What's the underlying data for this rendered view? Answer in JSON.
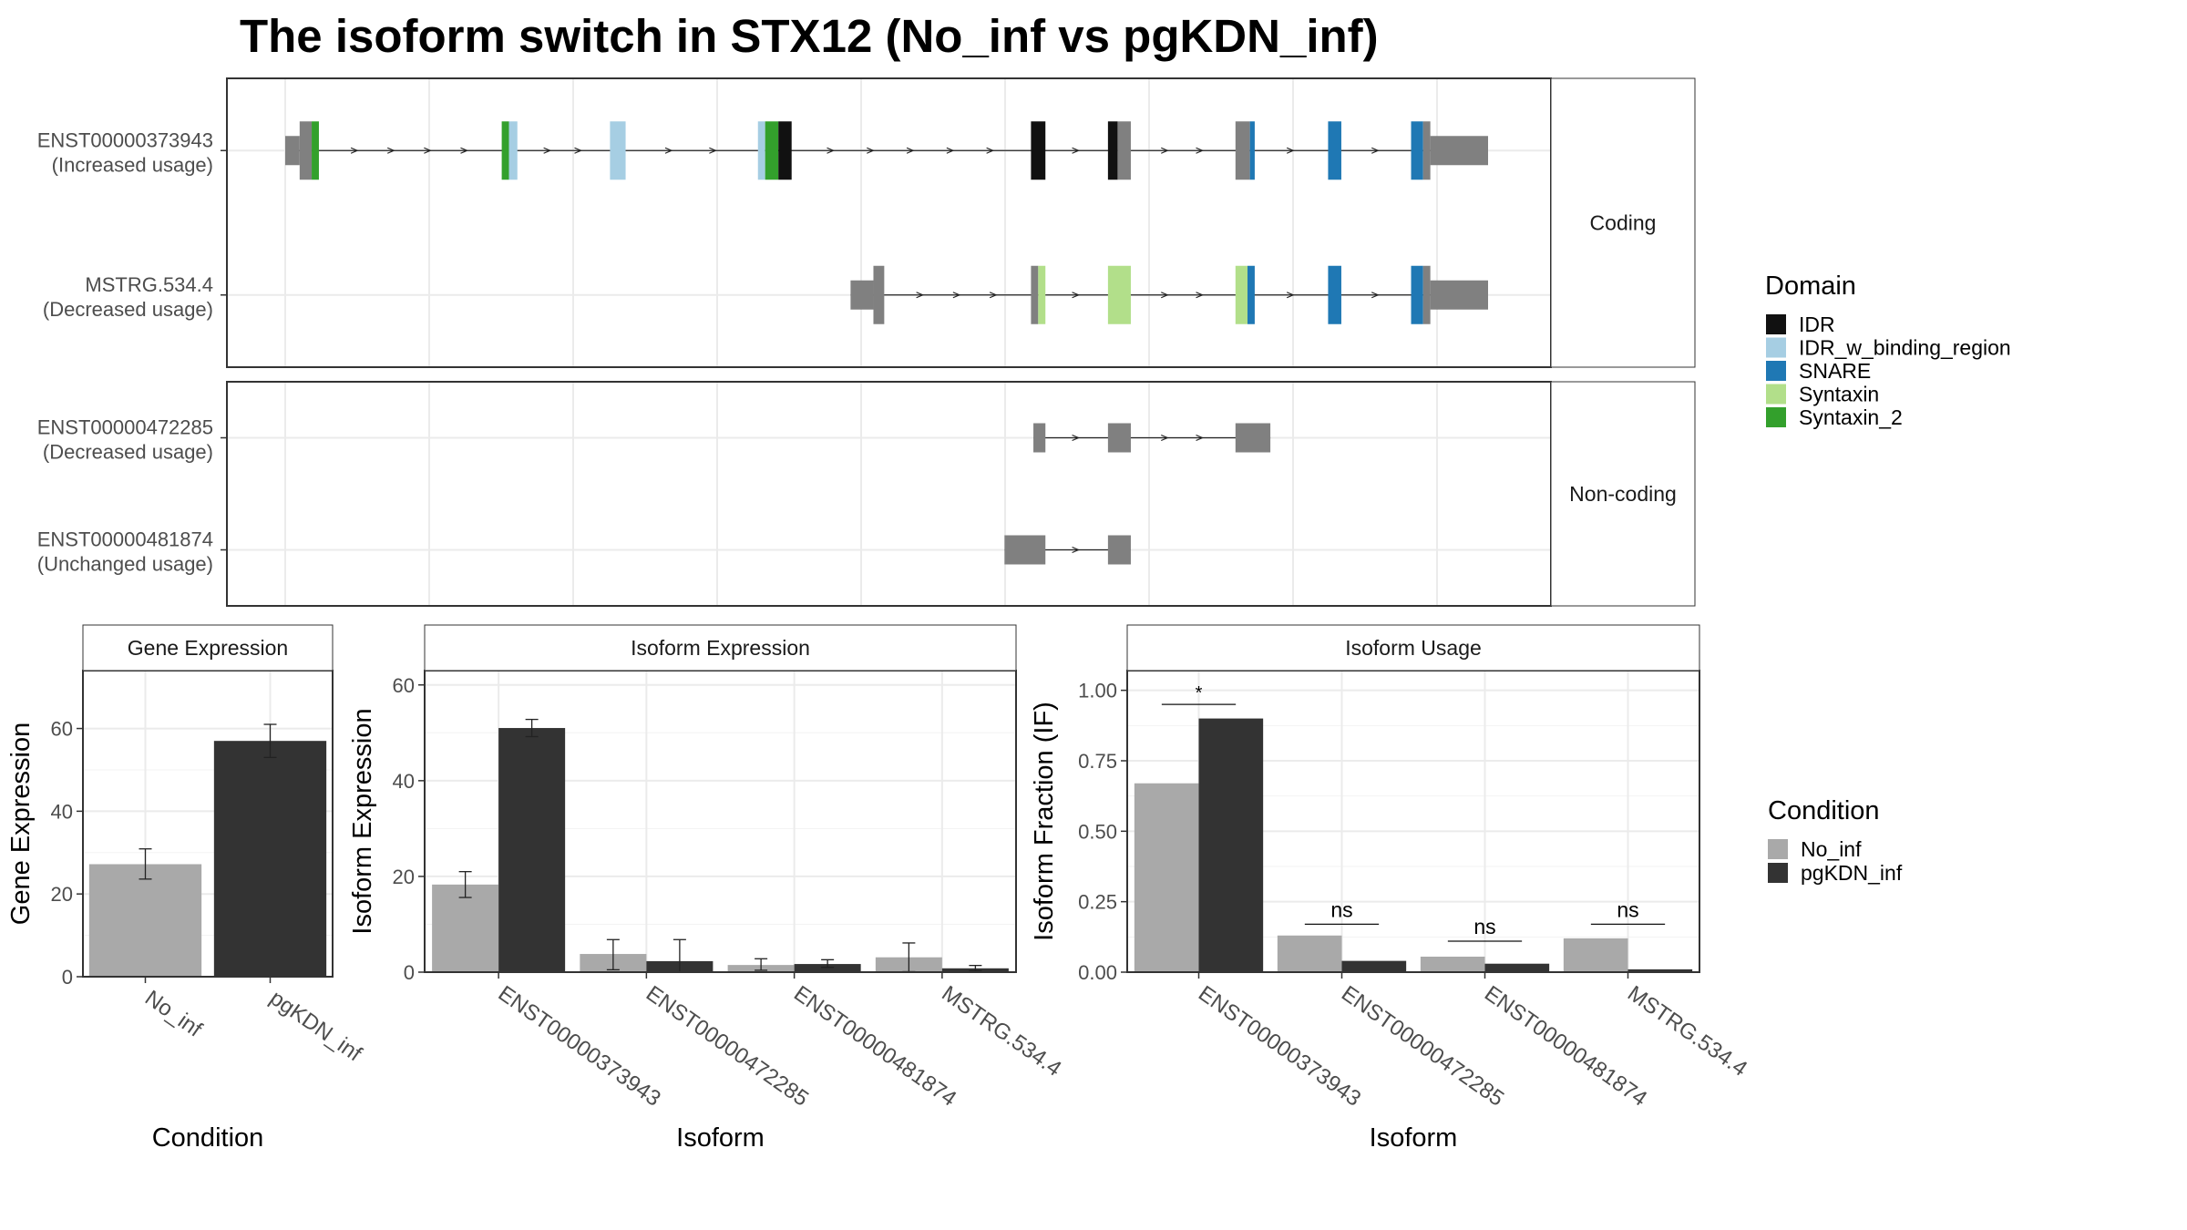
{
  "title": "The isoform switch in STX12 (No_inf vs pgKDN_inf)",
  "colors": {
    "IDR": "#111111",
    "IDR_w_binding_region": "#A6CEE3",
    "SNARE": "#1F78B4",
    "Syntaxin": "#B2DF8A",
    "Syntaxin_2": "#33A02C",
    "none": "#808080",
    "No_inf": "#A9A9A9",
    "pgKDN_inf": "#333333"
  },
  "chart_data": [
    {
      "type": "gene-structure",
      "x_range": [
        0,
        100
      ],
      "facets": [
        {
          "label": "Coding",
          "transcripts": [
            {
              "name": "ENST00000373943",
              "usage": "(Increased usage)",
              "segments": [
                {
                  "start": 0.0,
                  "end": 1.2,
                  "kind": "utr",
                  "domain": "none"
                },
                {
                  "start": 1.2,
                  "end": 2.2,
                  "kind": "cds",
                  "domain": "none"
                },
                {
                  "start": 2.2,
                  "end": 2.8,
                  "kind": "cds",
                  "domain": "Syntaxin_2"
                },
                {
                  "start": 18.0,
                  "end": 18.6,
                  "kind": "cds",
                  "domain": "Syntaxin_2"
                },
                {
                  "start": 18.6,
                  "end": 19.3,
                  "kind": "cds",
                  "domain": "IDR_w_binding_region"
                },
                {
                  "start": 27.0,
                  "end": 28.3,
                  "kind": "cds",
                  "domain": "IDR_w_binding_region"
                },
                {
                  "start": 39.3,
                  "end": 39.9,
                  "kind": "cds",
                  "domain": "IDR_w_binding_region"
                },
                {
                  "start": 39.9,
                  "end": 41.0,
                  "kind": "cds",
                  "domain": "Syntaxin_2"
                },
                {
                  "start": 41.0,
                  "end": 42.1,
                  "kind": "cds",
                  "domain": "IDR"
                },
                {
                  "start": 62.0,
                  "end": 63.2,
                  "kind": "cds",
                  "domain": "IDR"
                },
                {
                  "start": 68.4,
                  "end": 69.2,
                  "kind": "cds",
                  "domain": "IDR"
                },
                {
                  "start": 69.2,
                  "end": 70.3,
                  "kind": "cds",
                  "domain": "none"
                },
                {
                  "start": 79.0,
                  "end": 80.2,
                  "kind": "cds",
                  "domain": "none"
                },
                {
                  "start": 80.2,
                  "end": 80.6,
                  "kind": "cds",
                  "domain": "SNARE"
                },
                {
                  "start": 86.7,
                  "end": 87.8,
                  "kind": "cds",
                  "domain": "SNARE"
                },
                {
                  "start": 93.6,
                  "end": 94.6,
                  "kind": "cds",
                  "domain": "SNARE"
                },
                {
                  "start": 94.6,
                  "end": 95.2,
                  "kind": "cds",
                  "domain": "none"
                },
                {
                  "start": 95.2,
                  "end": 100.0,
                  "kind": "utr",
                  "domain": "none"
                }
              ]
            },
            {
              "name": "MSTRG.534.4",
              "usage": "(Decreased usage)",
              "segments": [
                {
                  "start": 47.0,
                  "end": 48.9,
                  "kind": "utr",
                  "domain": "none"
                },
                {
                  "start": 48.9,
                  "end": 49.8,
                  "kind": "cds",
                  "domain": "none"
                },
                {
                  "start": 62.0,
                  "end": 62.6,
                  "kind": "cds",
                  "domain": "none"
                },
                {
                  "start": 62.6,
                  "end": 63.2,
                  "kind": "cds",
                  "domain": "Syntaxin"
                },
                {
                  "start": 68.4,
                  "end": 70.3,
                  "kind": "cds",
                  "domain": "Syntaxin"
                },
                {
                  "start": 79.0,
                  "end": 80.0,
                  "kind": "cds",
                  "domain": "Syntaxin"
                },
                {
                  "start": 80.0,
                  "end": 80.6,
                  "kind": "cds",
                  "domain": "SNARE"
                },
                {
                  "start": 86.7,
                  "end": 87.8,
                  "kind": "cds",
                  "domain": "SNARE"
                },
                {
                  "start": 93.6,
                  "end": 94.6,
                  "kind": "cds",
                  "domain": "SNARE"
                },
                {
                  "start": 94.6,
                  "end": 95.2,
                  "kind": "cds",
                  "domain": "none"
                },
                {
                  "start": 95.2,
                  "end": 100.0,
                  "kind": "utr",
                  "domain": "none"
                }
              ]
            }
          ]
        },
        {
          "label": "Non-coding",
          "transcripts": [
            {
              "name": "ENST00000472285",
              "usage": "(Decreased usage)",
              "segments": [
                {
                  "start": 62.2,
                  "end": 63.2,
                  "kind": "utr",
                  "domain": "none"
                },
                {
                  "start": 68.4,
                  "end": 70.3,
                  "kind": "utr",
                  "domain": "none"
                },
                {
                  "start": 79.0,
                  "end": 81.9,
                  "kind": "utr",
                  "domain": "none"
                }
              ]
            },
            {
              "name": "ENST00000481874",
              "usage": "(Unchanged usage)",
              "segments": [
                {
                  "start": 59.8,
                  "end": 63.2,
                  "kind": "utr",
                  "domain": "none"
                },
                {
                  "start": 68.4,
                  "end": 70.3,
                  "kind": "utr",
                  "domain": "none"
                }
              ]
            }
          ]
        }
      ],
      "legend": {
        "title": "Domain",
        "entries": [
          "IDR",
          "IDR_w_binding_region",
          "SNARE",
          "Syntaxin",
          "Syntaxin_2"
        ]
      }
    },
    {
      "type": "bar",
      "facet_label": "Gene Expression",
      "xlabel": "Condition",
      "ylabel": "Gene Expression",
      "ylim": [
        0,
        74
      ],
      "yticks": [
        0,
        20,
        40,
        60
      ],
      "categories": [
        "No_inf",
        "pgKDN_inf"
      ],
      "values": [
        27.2,
        57.0
      ],
      "err_low": [
        23.6,
        53.0
      ],
      "err_high": [
        30.9,
        61.0
      ]
    },
    {
      "type": "bar",
      "facet_label": "Isoform Expression",
      "xlabel": "Isoform",
      "ylabel": "Isoform Expression",
      "ylim": [
        0,
        63
      ],
      "yticks": [
        0,
        20,
        40,
        60
      ],
      "categories": [
        "ENST00000373943",
        "ENST00000472285",
        "ENST00000481874",
        "MSTRG.534.4"
      ],
      "series": [
        {
          "name": "No_inf",
          "values": [
            18.3,
            3.8,
            1.5,
            3.1
          ],
          "err_low": [
            15.6,
            0.5,
            0.4,
            0.1
          ],
          "err_high": [
            21.0,
            6.8,
            2.8,
            6.1
          ]
        },
        {
          "name": "pgKDN_inf",
          "values": [
            51.0,
            2.3,
            1.7,
            0.8
          ],
          "err_low": [
            49.2,
            0.0,
            1.0,
            0.3
          ],
          "err_high": [
            52.8,
            6.8,
            2.6,
            1.4
          ]
        }
      ]
    },
    {
      "type": "bar",
      "facet_label": "Isoform Usage",
      "xlabel": "Isoform",
      "ylabel": "Isoform Fraction (IF)",
      "ylim": [
        0,
        1.07
      ],
      "yticks": [
        "0.00",
        "0.25",
        "0.50",
        "0.75",
        "1.00"
      ],
      "categories": [
        "ENST00000373943",
        "ENST00000472285",
        "ENST00000481874",
        "MSTRG.534.4"
      ],
      "series": [
        {
          "name": "No_inf",
          "values": [
            0.67,
            0.13,
            0.055,
            0.12
          ]
        },
        {
          "name": "pgKDN_inf",
          "values": [
            0.9,
            0.04,
            0.03,
            0.01
          ]
        }
      ],
      "significance": [
        "*",
        "ns",
        "ns",
        "ns"
      ],
      "significance_y": [
        0.95,
        0.17,
        0.11,
        0.17
      ]
    }
  ],
  "condition_legend": {
    "title": "Condition",
    "entries": [
      "No_inf",
      "pgKDN_inf"
    ]
  }
}
